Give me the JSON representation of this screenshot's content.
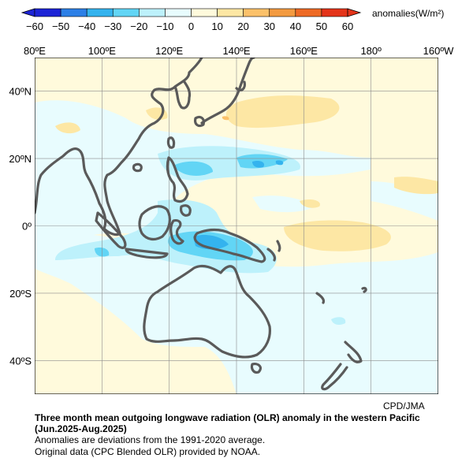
{
  "legend": {
    "unit_label": "anomalies(W/m²)",
    "ticks": [
      "−60",
      "−50",
      "−40",
      "−30",
      "−20",
      "−10",
      "0",
      "10",
      "20",
      "30",
      "40",
      "50",
      "60"
    ],
    "colors": [
      "#1d24d6",
      "#2c7fe6",
      "#34b3ee",
      "#62d5f5",
      "#bdf1fb",
      "#e8fcfe",
      "#fffadc",
      "#fde7a4",
      "#fbc16a",
      "#f39a40",
      "#ee6a25",
      "#e4341a"
    ]
  },
  "map": {
    "lon_labels": [
      "80ºE",
      "100ºE",
      "120ºE",
      "140ºE",
      "160ºE",
      "180º",
      "160ºW"
    ],
    "lat_labels": [
      "40ºN",
      "20ºN",
      "0º",
      "20ºS",
      "40ºS"
    ],
    "credit": "CPD/JMA"
  },
  "caption": {
    "title": "Three month mean outgoing longwave radiation (OLR) anomaly in the western Pacific",
    "period": "(Jun.2025-Aug.2025)",
    "note1": "Anomalies are deviations from the 1991-2020 average.",
    "note2": "Original data (CPC Blended OLR) provided by NOAA."
  }
}
